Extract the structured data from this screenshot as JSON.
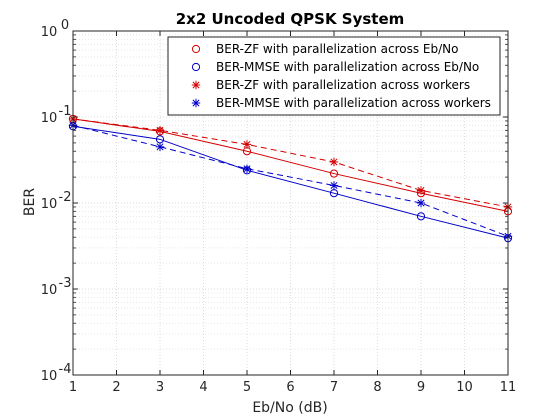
{
  "chart_data": {
    "type": "line",
    "title": "2x2 Uncoded QPSK System",
    "xlabel": "Eb/No (dB)",
    "ylabel": "BER",
    "xlim": [
      1,
      11
    ],
    "ylim": [
      0.0001,
      1
    ],
    "yscale": "log",
    "grid": true,
    "minor_grid": true,
    "legend_position": "top-right",
    "x_ticks": [
      1,
      2,
      3,
      4,
      5,
      6,
      7,
      8,
      9,
      10,
      11
    ],
    "y_ticks": [
      {
        "value": 0.0001,
        "base": "10",
        "exp": "-4"
      },
      {
        "value": 0.001,
        "base": "10",
        "exp": "-3"
      },
      {
        "value": 0.01,
        "base": "10",
        "exp": "-2"
      },
      {
        "value": 0.1,
        "base": "10",
        "exp": "-1"
      },
      {
        "value": 1,
        "base": "10",
        "exp": "0"
      }
    ],
    "series": [
      {
        "name": "BER-ZF with parallelization across Eb/No",
        "color": "#d40000",
        "marker": "circle",
        "line": "solid",
        "x": [
          1,
          3,
          5,
          7,
          9,
          11
        ],
        "y": [
          0.095,
          0.068,
          0.04,
          0.022,
          0.013,
          0.008
        ]
      },
      {
        "name": "BER-MMSE with parallelization across Eb/No",
        "color": "#0000c8",
        "marker": "circle",
        "line": "solid",
        "x": [
          1,
          3,
          5,
          7,
          9,
          11
        ],
        "y": [
          0.078,
          0.055,
          0.024,
          0.013,
          0.007,
          0.0039
        ]
      },
      {
        "name": "BER-ZF with parallelization across workers",
        "color": "#d40000",
        "marker": "asterisk",
        "line": "dashed",
        "x": [
          1,
          3,
          5,
          7,
          9,
          11
        ],
        "y": [
          0.095,
          0.07,
          0.048,
          0.03,
          0.014,
          0.009
        ]
      },
      {
        "name": "BER-MMSE with parallelization across workers",
        "color": "#0000c8",
        "marker": "asterisk",
        "line": "dashed",
        "x": [
          1,
          3,
          5,
          7,
          9,
          11
        ],
        "y": [
          0.08,
          0.045,
          0.025,
          0.016,
          0.01,
          0.0041
        ]
      }
    ]
  }
}
